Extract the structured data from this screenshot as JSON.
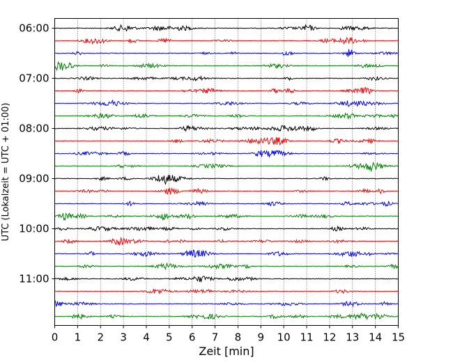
{
  "chart_data": {
    "type": "line",
    "title": "",
    "xlabel": "Zeit  [min]",
    "ylabel": "UTC (Lokalzeit = UTC + 01:00)",
    "xlim": [
      0,
      15
    ],
    "xticks": [
      0,
      1,
      2,
      3,
      4,
      5,
      6,
      7,
      8,
      9,
      10,
      11,
      12,
      13,
      14,
      15
    ],
    "vertical_grid": "dotted",
    "trace_interval_minutes": 15,
    "trace_colors_cycle": [
      "#000000",
      "#ff0000",
      "#0000ff",
      "#008000"
    ],
    "row_labels": [
      "06:00",
      "07:00",
      "08:00",
      "09:00",
      "10:00",
      "11:00"
    ],
    "traces": [
      {
        "start": "06:00",
        "color": "#000000"
      },
      {
        "start": "06:15",
        "color": "#ff0000"
      },
      {
        "start": "06:30",
        "color": "#0000ff"
      },
      {
        "start": "06:45",
        "color": "#008000"
      },
      {
        "start": "07:00",
        "color": "#000000"
      },
      {
        "start": "07:15",
        "color": "#ff0000"
      },
      {
        "start": "07:30",
        "color": "#0000ff"
      },
      {
        "start": "07:45",
        "color": "#008000"
      },
      {
        "start": "08:00",
        "color": "#000000"
      },
      {
        "start": "08:15",
        "color": "#ff0000"
      },
      {
        "start": "08:30",
        "color": "#0000ff"
      },
      {
        "start": "08:45",
        "color": "#008000"
      },
      {
        "start": "09:00",
        "color": "#000000"
      },
      {
        "start": "09:15",
        "color": "#ff0000"
      },
      {
        "start": "09:30",
        "color": "#0000ff"
      },
      {
        "start": "09:45",
        "color": "#008000"
      },
      {
        "start": "10:00",
        "color": "#000000"
      },
      {
        "start": "10:15",
        "color": "#ff0000"
      },
      {
        "start": "10:30",
        "color": "#0000ff"
      },
      {
        "start": "10:45",
        "color": "#008000"
      },
      {
        "start": "11:00",
        "color": "#000000"
      },
      {
        "start": "11:15",
        "color": "#ff0000"
      },
      {
        "start": "11:30",
        "color": "#0000ff"
      },
      {
        "start": "11:45",
        "color": "#008000"
      }
    ]
  }
}
